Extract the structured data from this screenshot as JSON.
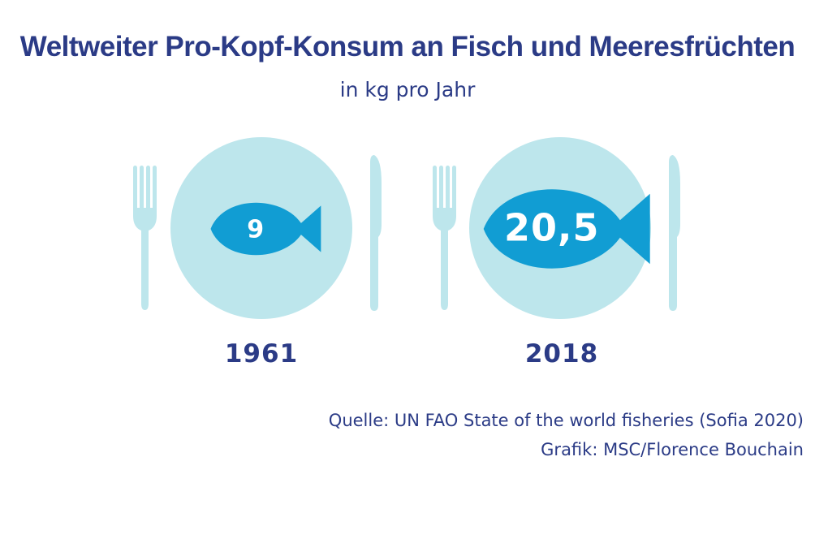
{
  "title": "Weltweiter Pro-Kopf-Konsum an Fisch und Meeresfrüchten",
  "subtitle": "in kg pro Jahr",
  "chart_data": {
    "type": "pictograph",
    "unit": "kg pro Jahr",
    "categories": [
      "1961",
      "2018"
    ],
    "values": [
      9,
      20.5
    ],
    "value_labels": [
      "9",
      "20,5"
    ]
  },
  "credits": {
    "source": "Quelle: UN FAO State of the world fisheries (Sofia 2020)",
    "graphic": "Grafik: MSC/Florence Bouchain"
  },
  "colors": {
    "plate": "#bde6ec",
    "cutlery": "#bde6ec",
    "fish": "#119dd3",
    "text": "#2b3b86"
  },
  "icons": [
    "fork-icon",
    "plate-icon",
    "fish-icon",
    "knife-icon"
  ]
}
